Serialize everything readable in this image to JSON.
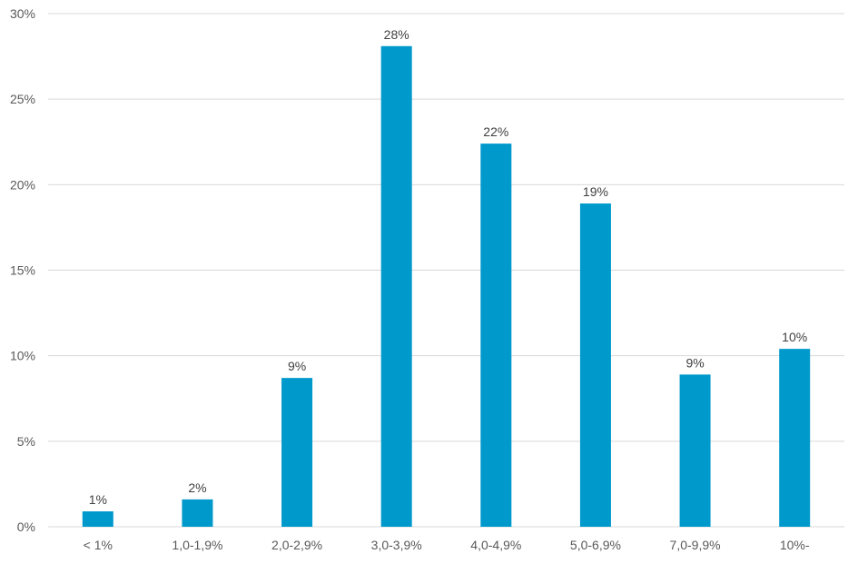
{
  "chart_data": {
    "type": "bar",
    "title": "",
    "xlabel": "",
    "ylabel": "",
    "categories": [
      "< 1%",
      "1,0-1,9%",
      "2,0-2,9%",
      "3,0-3,9%",
      "4,0-4,9%",
      "5,0-6,9%",
      "7,0-9,9%",
      "10%-"
    ],
    "values": [
      0.9,
      1.6,
      8.7,
      28.1,
      22.4,
      18.9,
      8.9,
      10.4
    ],
    "data_labels": [
      "1%",
      "2%",
      "9%",
      "28%",
      "22%",
      "19%",
      "9%",
      "10%"
    ],
    "ylim": [
      0,
      30
    ],
    "yticks": [
      0,
      5,
      10,
      15,
      20,
      25,
      30
    ],
    "ytick_labels": [
      "0%",
      "5%",
      "10%",
      "15%",
      "20%",
      "25%",
      "30%"
    ],
    "grid": true,
    "legend": "none",
    "colors": {
      "bar": "#0099cc",
      "grid": "#d9d9d9",
      "text": "#595959"
    }
  }
}
